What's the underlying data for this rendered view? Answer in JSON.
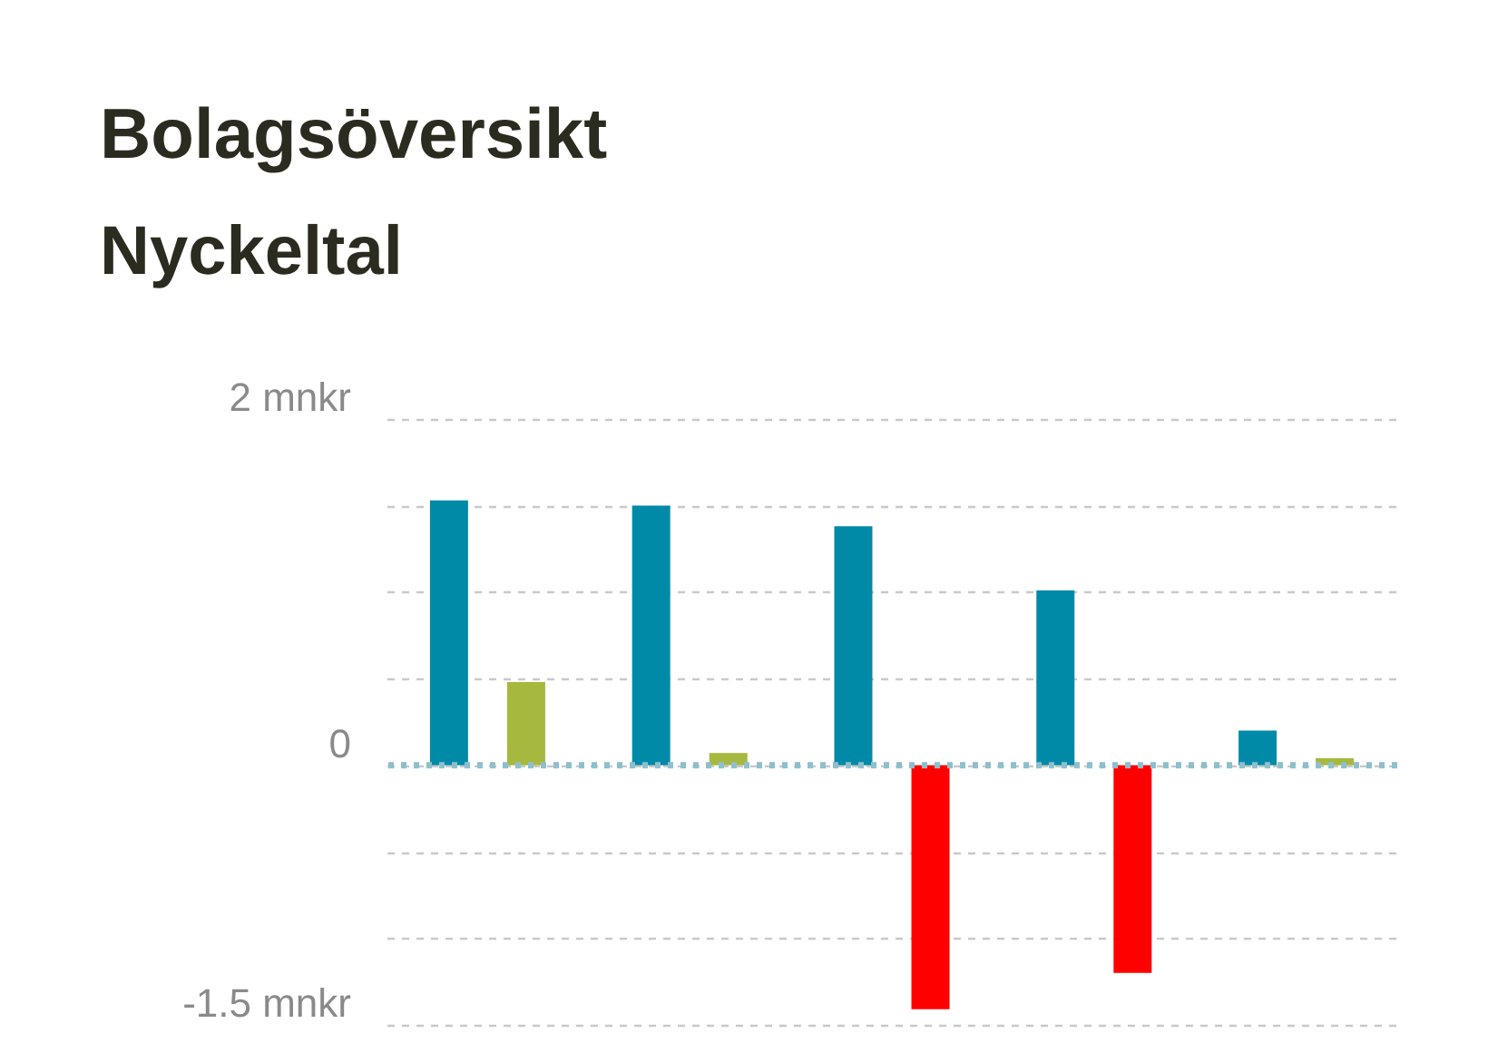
{
  "chart_data": {
    "type": "bar",
    "title": "Bolagsöversikt",
    "subtitle": "Nyckeltal",
    "categories": [
      null,
      null,
      null,
      null,
      null
    ],
    "series": [
      {
        "color": "#008aa8",
        "values": [
          1.53,
          1.5,
          1.38,
          1.01,
          0.2
        ]
      },
      {
        "colors": [
          "#a6b83e",
          "#a6b83e",
          "#ff0000",
          "#ff0000",
          "#a6b83e"
        ],
        "values": [
          0.48,
          0.07,
          -1.41,
          -1.2,
          0.04
        ]
      }
    ],
    "ylim": [
      -1.5,
      2
    ],
    "yticks": [
      {
        "value": 2,
        "label": "2 mnkr"
      },
      {
        "value": 1.5,
        "label": null
      },
      {
        "value": 1,
        "label": null
      },
      {
        "value": 0.5,
        "label": null
      },
      0,
      {
        "value": -0.5,
        "label": null
      },
      {
        "value": -1,
        "label": null
      },
      {
        "value": -1.5,
        "label": "-1.5 mnkr"
      }
    ],
    "grid": "y",
    "tick_labels": "y",
    "ref_lines": [
      {
        "axis": "y",
        "value": 0,
        "color": "#8dbfcc",
        "line_style": "dotted"
      }
    ]
  }
}
